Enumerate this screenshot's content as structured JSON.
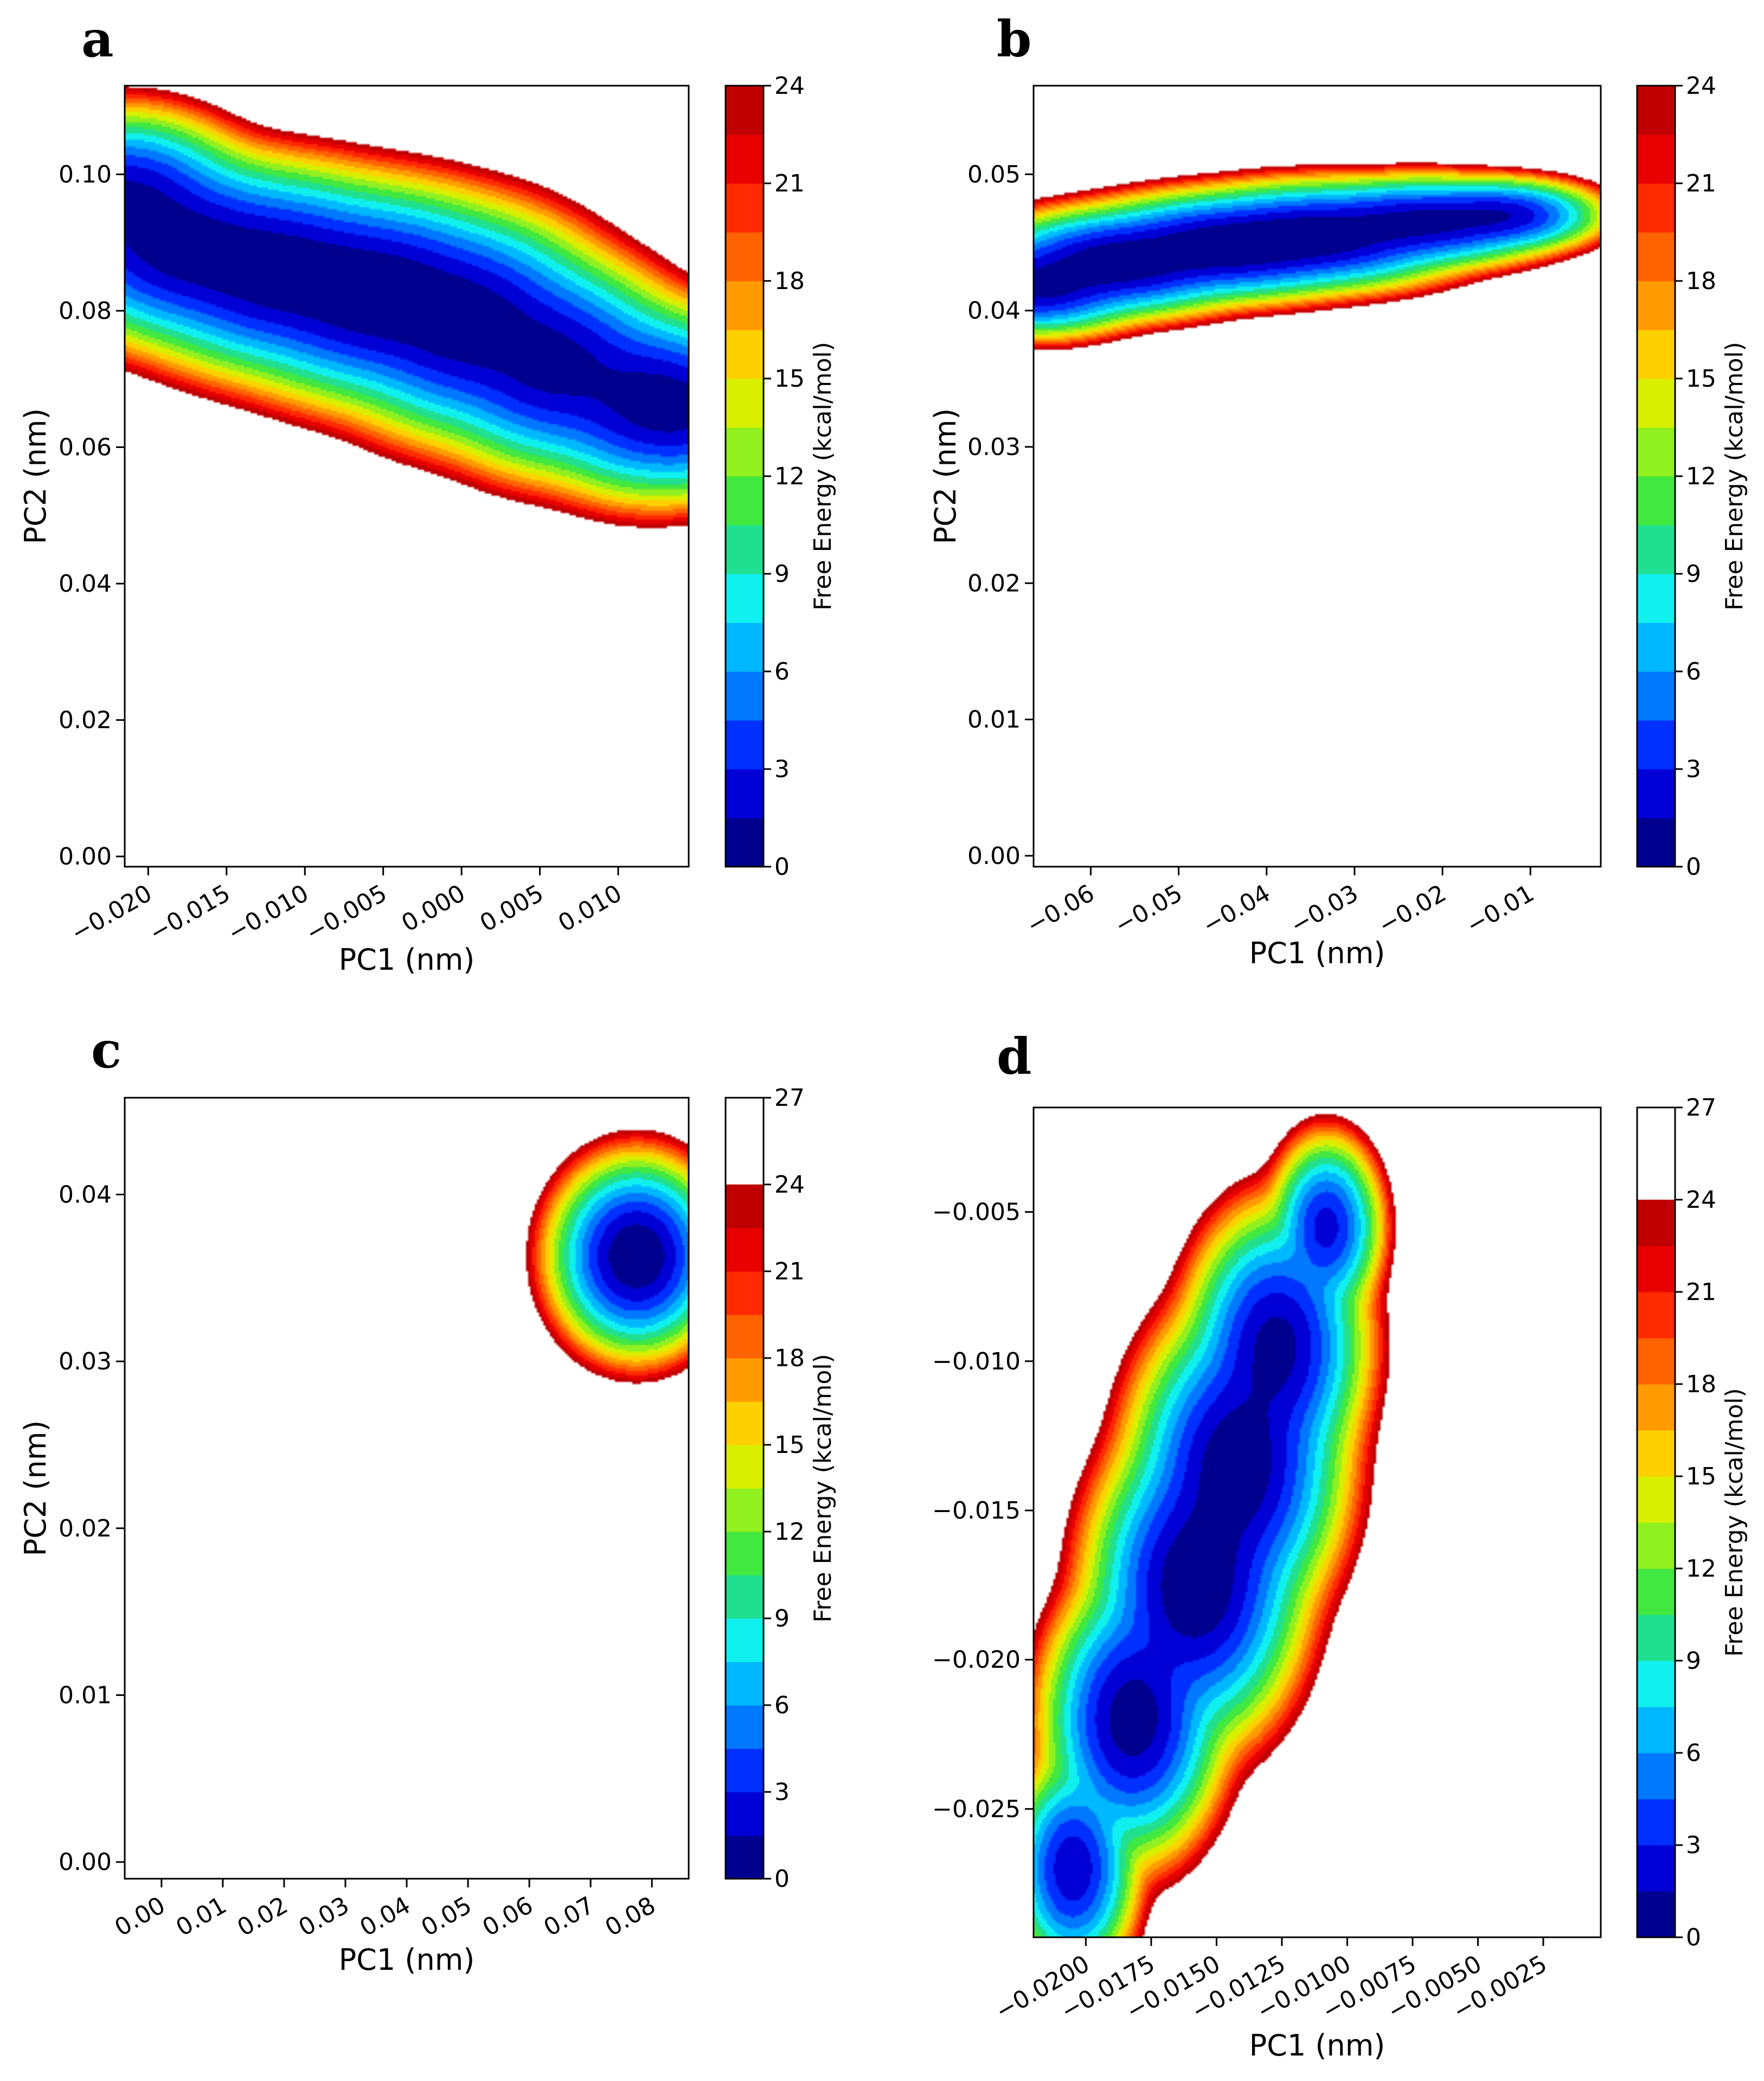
{
  "chart_data": [
    {
      "type": "contour",
      "panel_label": "a",
      "xlabel": "PC1 (nm)",
      "ylabel": "PC2 (nm)",
      "xlim": [
        -0.0215,
        0.0145
      ],
      "ylim": [
        -0.0015,
        0.113
      ],
      "xticks": [
        -0.02,
        -0.015,
        -0.01,
        -0.005,
        0.0,
        0.005,
        0.01
      ],
      "xtick_labels": [
        "−0.020",
        "−0.015",
        "−0.010",
        "−0.005",
        "0.000",
        "0.005",
        "0.010"
      ],
      "yticks": [
        0.0,
        0.02,
        0.04,
        0.06,
        0.08,
        0.1
      ],
      "ytick_labels": [
        "0.00",
        "0.02",
        "0.04",
        "0.06",
        "0.08",
        "0.10"
      ],
      "colorbar": {
        "label": "Free Energy (kcal/mol)",
        "min": 0,
        "max": 24,
        "ticks": [
          0,
          3,
          6,
          9,
          12,
          15,
          18,
          21,
          24
        ],
        "tick_labels": [
          "0",
          "3",
          "6",
          "9",
          "12",
          "15",
          "18",
          "21",
          "24"
        ]
      },
      "basin": {
        "min_free_energy": 0,
        "minimum_at": {
          "pc1": -0.0055,
          "pc2": 0.0825
        },
        "points": [
          [
            -0.0215,
            0.0965
          ],
          [
            -0.018,
            0.0895
          ],
          [
            -0.012,
            0.086
          ],
          [
            -0.0055,
            0.0825
          ],
          [
            0.0005,
            0.078
          ],
          [
            0.006,
            0.072
          ],
          [
            0.0115,
            0.067
          ],
          [
            0.0145,
            0.0655
          ]
        ],
        "spread_pc1": [
          0.0026,
          0.003,
          0.0032,
          0.0033,
          0.003,
          0.0027,
          0.0025,
          0.0022
        ],
        "spread_pc2": [
          0.0042,
          0.0047,
          0.005,
          0.0052,
          0.0055,
          0.0052,
          0.0048,
          0.0042
        ],
        "scale": [
          0.65,
          0.78,
          0.88,
          1.0,
          0.85,
          0.72,
          0.6,
          0.5
        ]
      }
    },
    {
      "type": "contour",
      "panel_label": "b",
      "xlabel": "PC1 (nm)",
      "ylabel": "PC2 (nm)",
      "xlim": [
        -0.0665,
        -0.002
      ],
      "ylim": [
        -0.0008,
        0.0565
      ],
      "xticks": [
        -0.06,
        -0.05,
        -0.04,
        -0.03,
        -0.02,
        -0.01
      ],
      "xtick_labels": [
        "−0.06",
        "−0.05",
        "−0.04",
        "−0.03",
        "−0.02",
        "−0.01"
      ],
      "yticks": [
        0.0,
        0.01,
        0.02,
        0.03,
        0.04,
        0.05
      ],
      "ytick_labels": [
        "0.00",
        "0.01",
        "0.02",
        "0.03",
        "0.04",
        "0.05"
      ],
      "colorbar": {
        "label": "Free Energy (kcal/mol)",
        "min": 0,
        "max": 24,
        "ticks": [
          0,
          3,
          6,
          9,
          12,
          15,
          18,
          21,
          24
        ],
        "tick_labels": [
          "0",
          "3",
          "6",
          "9",
          "12",
          "15",
          "18",
          "21",
          "24"
        ]
      },
      "basin": {
        "min_free_energy": 0,
        "minimum_at": {
          "pc1": -0.045,
          "pc2": 0.0447
        },
        "points": [
          [
            -0.066,
            0.0418
          ],
          [
            -0.057,
            0.0435
          ],
          [
            -0.045,
            0.0447
          ],
          [
            -0.034,
            0.0455
          ],
          [
            -0.022,
            0.0465
          ],
          [
            -0.013,
            0.047
          ]
        ],
        "spread_pc1": [
          0.0042,
          0.0052,
          0.0058,
          0.0058,
          0.0052,
          0.0038
        ],
        "spread_pc2": [
          0.0012,
          0.0013,
          0.0013,
          0.0013,
          0.0011,
          0.0009
        ],
        "scale": [
          0.75,
          0.95,
          1.0,
          0.92,
          0.72,
          0.5
        ]
      }
    },
    {
      "type": "contour",
      "panel_label": "c",
      "xlabel": "PC1 (nm)",
      "ylabel": "PC2 (nm)",
      "xlim": [
        -0.006,
        0.086
      ],
      "ylim": [
        -0.001,
        0.0458
      ],
      "xticks": [
        0.0,
        0.01,
        0.02,
        0.03,
        0.04,
        0.05,
        0.06,
        0.07,
        0.08
      ],
      "xtick_labels": [
        "0.00",
        "0.01",
        "0.02",
        "0.03",
        "0.04",
        "0.05",
        "0.06",
        "0.07",
        "0.08"
      ],
      "yticks": [
        0.0,
        0.01,
        0.02,
        0.03,
        0.04
      ],
      "ytick_labels": [
        "0.00",
        "0.01",
        "0.02",
        "0.03",
        "0.04"
      ],
      "colorbar": {
        "label": "Free Energy (kcal/mol)",
        "min": 0,
        "max": 27,
        "ticks": [
          0,
          3,
          6,
          9,
          12,
          15,
          18,
          21,
          24,
          27
        ],
        "tick_labels": [
          "0",
          "3",
          "6",
          "9",
          "12",
          "15",
          "18",
          "21",
          "24",
          "27"
        ]
      },
      "basin": {
        "min_free_energy": 0,
        "minimum_at": {
          "pc1": 0.0775,
          "pc2": 0.0363
        },
        "points": [
          [
            0.0775,
            0.0363
          ]
        ],
        "spread_pc1": [
          0.0045
        ],
        "spread_pc2": [
          0.0019
        ],
        "scale": [
          1.0
        ]
      }
    },
    {
      "type": "contour",
      "panel_label": "d",
      "xlabel": "PC1 (nm)",
      "ylabel": "",
      "xlim": [
        -0.022,
        -0.0003
      ],
      "ylim": [
        -0.0293,
        -0.0015
      ],
      "xticks": [
        -0.02,
        -0.0175,
        -0.015,
        -0.0125,
        -0.01,
        -0.0075,
        -0.005,
        -0.0025
      ],
      "xtick_labels": [
        "−0.0200",
        "−0.0175",
        "−0.0150",
        "−0.0125",
        "−0.0100",
        "−0.0075",
        "−0.0050",
        "−0.0025"
      ],
      "yticks": [
        -0.025,
        -0.02,
        -0.015,
        -0.01,
        -0.005
      ],
      "ytick_labels": [
        "−0.025",
        "−0.020",
        "−0.015",
        "−0.010",
        "−0.005"
      ],
      "colorbar": {
        "label": "Free Energy (kcal/mol)",
        "min": 0,
        "max": 27,
        "ticks": [
          0,
          3,
          6,
          9,
          12,
          15,
          18,
          21,
          24,
          27
        ],
        "tick_labels": [
          "0",
          "3",
          "6",
          "9",
          "12",
          "15",
          "18",
          "21",
          "24",
          "27"
        ]
      },
      "basin": {
        "min_free_energy": 0,
        "minimum_at": {
          "pc1": -0.0158,
          "pc2": -0.0175
        },
        "points": [
          [
            -0.0205,
            -0.027
          ],
          [
            -0.0182,
            -0.022
          ],
          [
            -0.0158,
            -0.0175
          ],
          [
            -0.0142,
            -0.0135
          ],
          [
            -0.0127,
            -0.0095
          ],
          [
            -0.0108,
            -0.0055
          ]
        ],
        "spread_pc1": [
          0.0008,
          0.0011,
          0.0013,
          0.0013,
          0.0011,
          0.0007
        ],
        "spread_pc2": [
          0.0012,
          0.0015,
          0.0017,
          0.0017,
          0.0015,
          0.001
        ],
        "scale": [
          0.55,
          0.85,
          1.0,
          0.95,
          0.75,
          0.45
        ]
      }
    }
  ],
  "colormap": [
    "#00008f",
    "#0000d6",
    "#0030ff",
    "#0078ff",
    "#00b8ff",
    "#10f0ef",
    "#20e090",
    "#40e840",
    "#90f020",
    "#d8f000",
    "#ffd000",
    "#ff9a00",
    "#ff6200",
    "#ff2a00",
    "#e80000",
    "#c00000"
  ]
}
